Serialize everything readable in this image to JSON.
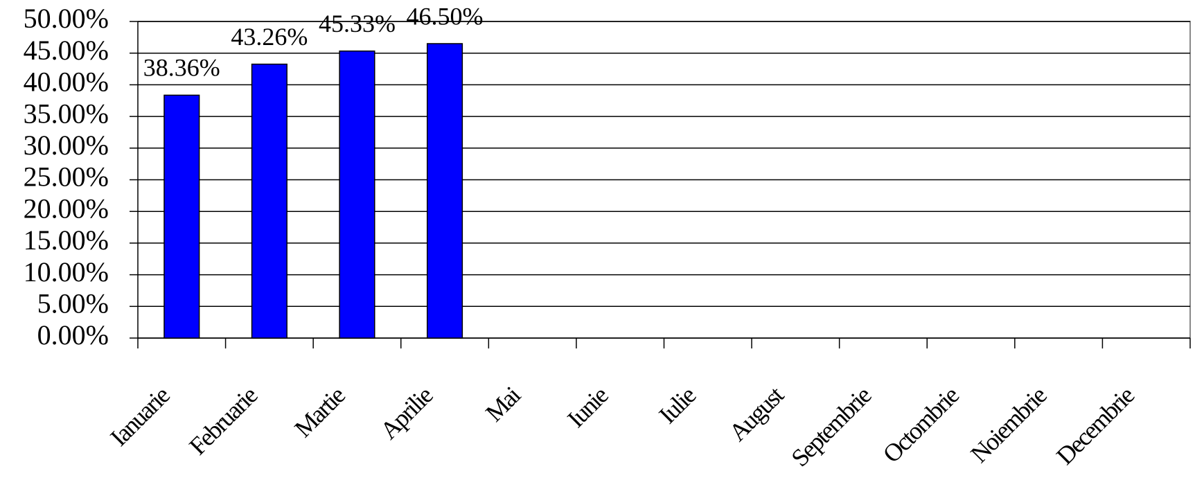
{
  "chart_data": {
    "type": "bar",
    "categories": [
      "Ianuarie",
      "Februarie",
      "Martie",
      "Aprilie",
      "Mai",
      "Iunie",
      "Iulie",
      "August",
      "Septembrie",
      "Octombrie",
      "Noiembrie",
      "Decembrie"
    ],
    "values": [
      38.36,
      43.26,
      45.33,
      46.5,
      null,
      null,
      null,
      null,
      null,
      null,
      null,
      null
    ],
    "value_labels": [
      "38.36%",
      "43.26%",
      "45.33%",
      "46.50%",
      null,
      null,
      null,
      null,
      null,
      null,
      null,
      null
    ],
    "color": "#0000ff",
    "ylim": [
      0,
      50
    ],
    "yticks": [
      {
        "value": 0,
        "label": "0.00%"
      },
      {
        "value": 5,
        "label": "5.00%"
      },
      {
        "value": 10,
        "label": "10.00%"
      },
      {
        "value": 15,
        "label": "15.00%"
      },
      {
        "value": 20,
        "label": "20.00%"
      },
      {
        "value": 25,
        "label": "25.00%"
      },
      {
        "value": 30,
        "label": "30.00%"
      },
      {
        "value": 35,
        "label": "35.00%"
      },
      {
        "value": 40,
        "label": "40.00%"
      },
      {
        "value": 45,
        "label": "45.00%"
      },
      {
        "value": 50,
        "label": "50.00%"
      }
    ],
    "grid": true
  }
}
